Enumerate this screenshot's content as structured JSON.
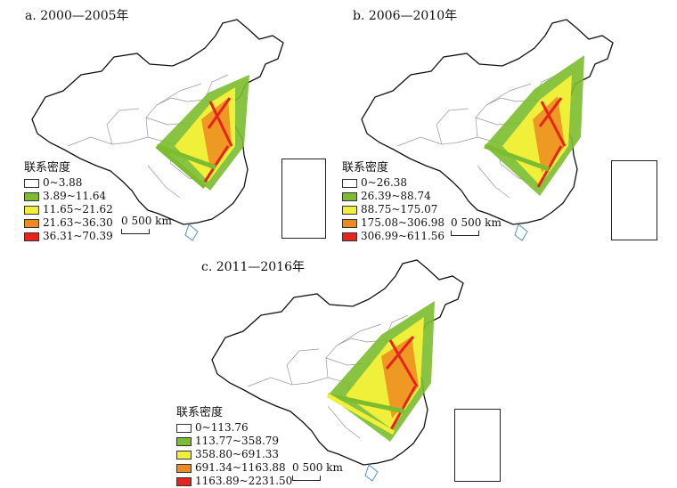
{
  "panels": [
    {
      "title": "a. 2000—2005年",
      "legend_title": "联系密度",
      "legend": [
        "0~3.88",
        "3.89~11.64",
        "11.65~21.62",
        "21.63~36.30",
        "36.31~70.39"
      ],
      "scale_label": "0  500 km"
    },
    {
      "title": "b. 2006—2010年",
      "legend_title": "联系密度",
      "legend": [
        "0~26.38",
        "26.39~88.74",
        "88.75~175.07",
        "175.08~306.98",
        "306.99~611.56"
      ],
      "scale_label": "0  500 km"
    },
    {
      "title": "c. 2011—2016年",
      "legend_title": "联系密度",
      "legend": [
        "0~113.76",
        "113.77~358.79",
        "358.80~691.33",
        "691.34~1163.88",
        "1163.89~2231.50"
      ],
      "scale_label": "0  500 km"
    }
  ],
  "legend_colors": [
    "#ffffff",
    "#7cbc2e",
    "#f0ef3a",
    "#ef8a22",
    "#e8231e"
  ],
  "river_color": "#4c8fd6",
  "boundary_color": "#999999",
  "outline_color": "#111111"
}
